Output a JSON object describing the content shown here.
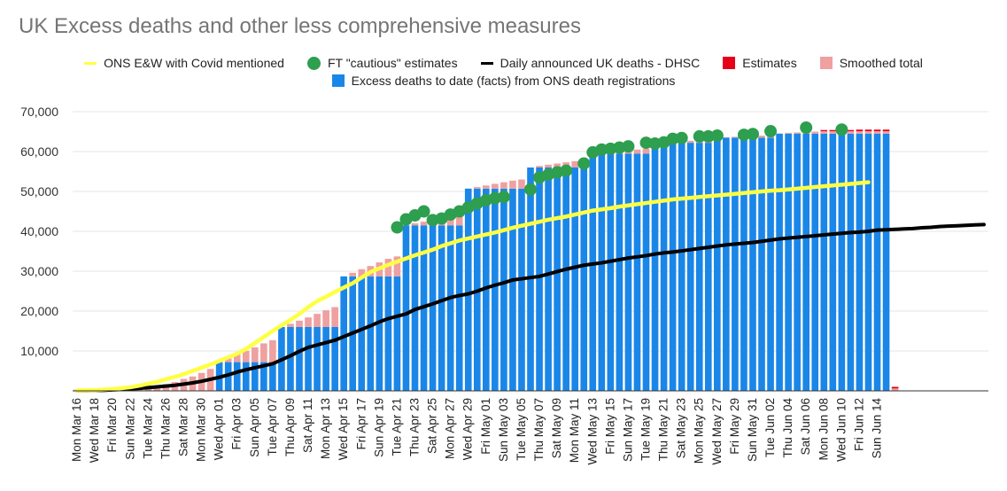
{
  "colors": {
    "facts": "#1a86e8",
    "smoothed": "#efa0a0",
    "estimates": "#e6001a",
    "ons_line": "#ffff44",
    "ft_dots": "#2e9e4f",
    "dhsc_line": "#000000",
    "gridline": "#e6e6e6",
    "axis": "#333333",
    "title": "#757575"
  },
  "legend_icons": {
    "ons": "line-swatch",
    "ft": "circle-swatch",
    "dhsc": "line-swatch",
    "estimates": "square-swatch",
    "smoothed": "square-swatch",
    "facts": "square-swatch"
  },
  "chart_data": {
    "type": "bar",
    "title": "UK Excess deaths and other less comprehensive measures",
    "legend_position": "top",
    "grid": true,
    "ylim": [
      0,
      70000
    ],
    "y_ticks": [
      10000,
      20000,
      30000,
      40000,
      50000,
      60000,
      70000
    ],
    "y_tick_labels": [
      "10,000",
      "20,000",
      "30,000",
      "40,000",
      "50,000",
      "60,000",
      "70,000"
    ],
    "x_tick_labels": [
      "Mon Mar 16",
      "Wed Mar 18",
      "Fri Mar 20",
      "Sun Mar 22",
      "Tue Mar 24",
      "Thu Mar 26",
      "Sat Mar 28",
      "Mon Mar 30",
      "Wed Apr 01",
      "Fri Apr 03",
      "Sun Apr 05",
      "Tue Apr 07",
      "Thu Apr 09",
      "Sat Apr 11",
      "Mon Apr 13",
      "Wed Apr 15",
      "Fri Apr 17",
      "Sun Apr 19",
      "Tue Apr 21",
      "Thu Apr 23",
      "Sat Apr 25",
      "Mon Apr 27",
      "Wed Apr 29",
      "Fri May 01",
      "Sun May 03",
      "Tue May 05",
      "Thu May 07",
      "Sat May 09",
      "Mon May 11",
      "Wed May 13",
      "Fri May 15",
      "Sun May 17",
      "Tue May 19",
      "Thu May 21",
      "Sat May 23",
      "Mon May 25",
      "Wed May 27",
      "Fri May 29",
      "Sun May 31",
      "Tue Jun 02",
      "Thu Jun 04",
      "Sat Jun 06",
      "Mon Jun 08",
      "Wed Jun 10",
      "Fri Jun 12",
      "Sun Jun 14"
    ],
    "start_date": "2020-03-16",
    "series": [
      {
        "name": "Excess deaths to date (facts) from ONS death registrations",
        "kind": "bar",
        "values": [
          0,
          0,
          0,
          0,
          0,
          0,
          0,
          0,
          0,
          0,
          0,
          0,
          0,
          0,
          0,
          0,
          7200,
          7200,
          7200,
          7200,
          7200,
          7200,
          7200,
          16000,
          16000,
          16000,
          16000,
          16000,
          16000,
          16000,
          28700,
          28700,
          28700,
          28700,
          28700,
          28700,
          28700,
          41500,
          41500,
          41500,
          41500,
          41500,
          41500,
          41500,
          50700,
          50700,
          50700,
          50700,
          50700,
          50700,
          50700,
          56000,
          56000,
          56000,
          56000,
          56000,
          56000,
          56000,
          59500,
          59500,
          59500,
          59500,
          59500,
          59500,
          59500,
          62200,
          62200,
          62200,
          62200,
          62200,
          62200,
          62200,
          63500,
          63500,
          63500,
          63500,
          63500,
          63500,
          63500,
          64500,
          64500,
          64500,
          64500,
          64500,
          64500,
          64500,
          64500,
          64500,
          64500,
          64500,
          64500,
          64500
        ]
      },
      {
        "name": "Smoothed total",
        "kind": "bar-stack",
        "values": [
          300,
          300,
          300,
          300,
          300,
          300,
          300,
          600,
          900,
          1300,
          1700,
          2200,
          3000,
          3600,
          4500,
          5500,
          0,
          900,
          1900,
          2800,
          3700,
          4700,
          5500,
          0,
          800,
          1600,
          2400,
          3300,
          4200,
          5000,
          0,
          900,
          1800,
          2600,
          3500,
          4400,
          5000,
          0,
          500,
          900,
          1300,
          1700,
          2000,
          2300,
          0,
          400,
          800,
          1200,
          1600,
          2000,
          2300,
          0,
          400,
          700,
          1000,
          1300,
          1600,
          1800,
          0,
          200,
          400,
          600,
          800,
          1000,
          1200,
          0,
          200,
          300,
          400,
          500,
          600,
          700,
          0,
          100,
          200,
          300,
          400,
          500,
          600,
          0,
          200,
          300,
          400,
          500,
          600,
          600,
          600,
          600,
          600,
          600,
          600,
          600,
          600
        ]
      },
      {
        "name": "Estimates",
        "kind": "bar-stack",
        "values": [
          0,
          0,
          0,
          0,
          0,
          0,
          0,
          0,
          0,
          0,
          0,
          0,
          0,
          0,
          0,
          0,
          0,
          0,
          0,
          0,
          0,
          0,
          0,
          0,
          0,
          0,
          0,
          0,
          0,
          0,
          0,
          0,
          0,
          0,
          0,
          0,
          0,
          0,
          0,
          0,
          0,
          0,
          0,
          0,
          0,
          0,
          0,
          0,
          0,
          0,
          0,
          0,
          0,
          0,
          0,
          0,
          0,
          0,
          0,
          0,
          0,
          0,
          0,
          0,
          0,
          0,
          0,
          0,
          0,
          0,
          0,
          0,
          0,
          0,
          0,
          0,
          0,
          0,
          0,
          0,
          0,
          0,
          0,
          0,
          300,
          300,
          300,
          300,
          400,
          400,
          400,
          400,
          400
        ]
      },
      {
        "name": "ONS E&W with Covid mentioned",
        "kind": "line",
        "values": [
          100,
          150,
          200,
          300,
          450,
          650,
          900,
          1300,
          1800,
          2300,
          2900,
          3500,
          4200,
          5000,
          5800,
          6600,
          7500,
          8400,
          9300,
          10500,
          12000,
          13500,
          15000,
          16400,
          17800,
          19300,
          21000,
          22500,
          23600,
          24800,
          25900,
          27000,
          28400,
          29800,
          30700,
          31600,
          32400,
          33200,
          34000,
          34700,
          35400,
          36300,
          37000,
          37700,
          38200,
          38700,
          39200,
          39700,
          40300,
          40900,
          41400,
          41900,
          42400,
          42900,
          43300,
          43700,
          44200,
          44700,
          45200,
          45500,
          45800,
          46200,
          46500,
          46800,
          47100,
          47400,
          47700,
          48000,
          48200,
          48400,
          48600,
          48800,
          49000,
          49200,
          49400,
          49600,
          49800,
          50000,
          50200,
          50300,
          50500,
          50700,
          50900,
          51100,
          51300,
          51500,
          51700,
          51900,
          52100,
          52300
        ]
      },
      {
        "name": "FT \"cautious\" estimates",
        "kind": "dots",
        "points": [
          [
            36,
            41000
          ],
          [
            37,
            43000
          ],
          [
            38,
            44000
          ],
          [
            39,
            45000
          ],
          [
            40,
            42800
          ],
          [
            41,
            43200
          ],
          [
            42,
            44200
          ],
          [
            43,
            45000
          ],
          [
            44,
            46000
          ],
          [
            45,
            47000
          ],
          [
            46,
            47800
          ],
          [
            47,
            48300
          ],
          [
            48,
            48600
          ],
          [
            51,
            50500
          ],
          [
            52,
            53500
          ],
          [
            53,
            54200
          ],
          [
            54,
            54800
          ],
          [
            55,
            55200
          ],
          [
            57,
            57000
          ],
          [
            58,
            59800
          ],
          [
            59,
            60500
          ],
          [
            60,
            60700
          ],
          [
            61,
            61000
          ],
          [
            62,
            61300
          ],
          [
            64,
            62200
          ],
          [
            65,
            62000
          ],
          [
            66,
            62300
          ],
          [
            67,
            63200
          ],
          [
            68,
            63400
          ],
          [
            70,
            63800
          ],
          [
            71,
            63800
          ],
          [
            72,
            64000
          ],
          [
            75,
            64200
          ],
          [
            76,
            64400
          ],
          [
            78,
            65100
          ],
          [
            82,
            66000
          ],
          [
            86,
            65500
          ]
        ]
      },
      {
        "name": "Daily announced UK deaths - DHSC",
        "kind": "line",
        "values": [
          50,
          70,
          100,
          150,
          250,
          350,
          500,
          650,
          800,
          1000,
          1200,
          1400,
          1700,
          2000,
          2400,
          2900,
          3400,
          4000,
          4700,
          5300,
          5800,
          6300,
          6800,
          7800,
          8800,
          9900,
          10900,
          11500,
          12100,
          12700,
          13600,
          14500,
          15400,
          16300,
          17300,
          18100,
          18700,
          19300,
          20400,
          21100,
          21800,
          22600,
          23400,
          23900,
          24300,
          25000,
          25800,
          26500,
          27100,
          27800,
          28100,
          28400,
          28700,
          29300,
          29900,
          30500,
          31000,
          31500,
          31800,
          32100,
          32500,
          32900,
          33300,
          33600,
          33900,
          34300,
          34600,
          34800,
          35100,
          35400,
          35700,
          36000,
          36300,
          36600,
          36800,
          37000,
          37200,
          37500,
          37800,
          38100,
          38300,
          38500,
          38700,
          38900,
          39100,
          39300,
          39500,
          39700,
          39800,
          40000,
          40300,
          40400,
          40500,
          40600,
          40700,
          40900,
          41000,
          41200,
          41300,
          41400,
          41500,
          41600,
          41700
        ]
      }
    ]
  },
  "legend": {
    "ons": "ONS E&W with Covid mentioned",
    "ft": "FT \"cautious\" estimates",
    "dhsc": "Daily announced UK deaths - DHSC",
    "estimates": "Estimates",
    "smoothed": "Smoothed total",
    "facts": "Excess deaths to date (facts) from ONS death registrations"
  }
}
